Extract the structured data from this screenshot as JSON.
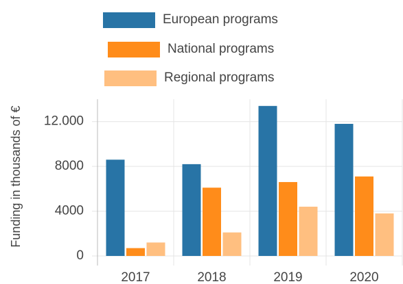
{
  "chart_data": {
    "type": "bar",
    "y_label": "Funding in thousands of €",
    "categories": [
      "2017",
      "2018",
      "2019",
      "2020"
    ],
    "series": [
      {
        "name": "European programs",
        "color": "#2874a6",
        "values": [
          8600,
          8200,
          13400,
          11800
        ]
      },
      {
        "name": "National programs",
        "color": "#ff8c1a",
        "values": [
          700,
          6100,
          6600,
          7100
        ]
      },
      {
        "name": "Regional programs",
        "color": "#ffbf80",
        "values": [
          1200,
          2100,
          4400,
          3800
        ]
      }
    ],
    "ylim": [
      0,
      14000
    ],
    "yticks": [
      0,
      4000,
      8000,
      {
        "value": 12000,
        "label": "12.000"
      }
    ],
    "grid": true,
    "legend": "top"
  }
}
